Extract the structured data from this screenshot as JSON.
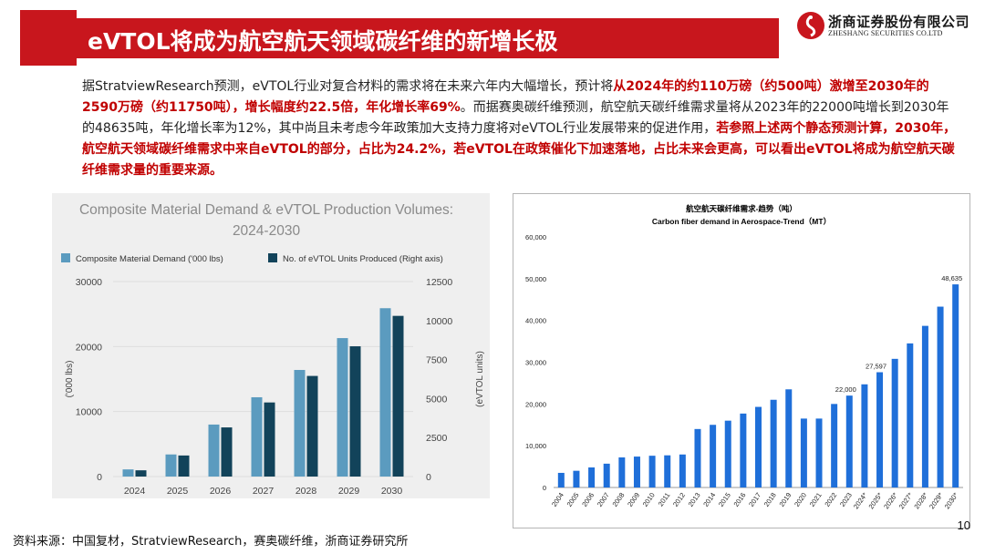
{
  "header": {
    "title": "eVTOL将成为航空航天领域碳纤维的新增长极",
    "logo_cn": "浙商证券股份有限公司",
    "logo_en": "ZHESHANG SECURITIES CO.LTD",
    "accent_color": "#c8161d"
  },
  "body": {
    "seg1": "据StratviewResearch预测，eVTOL行业对复合材料的需求将在未来六年内大幅增长，预计将",
    "seg2": "从2024年的约110万磅（约500吨）激增至2030年的2590万磅（约11750吨），增长幅度约22.5倍，年化增长率69%",
    "seg3": "。而据赛奥碳纤维预测，航空航天碳纤维需求量将从2023年的22000吨增长到2030年的48635吨，年化增长率为12%，其中尚且未考虑今年政策加大支持力度将对eVTOL行业发展带来的促进作用，",
    "seg4": "若参照上述两个静态预测计算，2030年，航空航天领域碳纤维需求中来自eVTOL的部分，占比为24.2%，若eVTOL在政策催化下加速落地，占比未来会更高，可以看出eVTOL将成为航空航天碳纤维需求量的重要来源。"
  },
  "footer": {
    "source": "资料来源：中国复材，StratviewResearch，赛奥碳纤维，浙商证券研究所",
    "page": "10"
  },
  "chart_data": [
    {
      "type": "bar",
      "title_line1": "Composite Material Demand & eVTOL Production Volumes:",
      "title_line2": "2024-2030",
      "categories": [
        "2024",
        "2025",
        "2026",
        "2027",
        "2028",
        "2029",
        "2030"
      ],
      "series": [
        {
          "name": "Composite Material Demand ('000 lbs)",
          "axis": "left",
          "color": "#5b9bbf",
          "values": [
            1100,
            3400,
            8000,
            12200,
            16400,
            21300,
            25900
          ]
        },
        {
          "name": "No. of eVTOL Units Produced (Right axis)",
          "axis": "right",
          "color": "#12435a",
          "values": [
            400,
            1350,
            3150,
            4750,
            6450,
            8350,
            10300
          ]
        }
      ],
      "ylabel": "('000 lbs)",
      "y2label": "(eVTOL units)",
      "ylim": [
        0,
        30000
      ],
      "yticks": [
        "0",
        "10000",
        "20000",
        "30000"
      ],
      "y2lim": [
        0,
        12500
      ],
      "y2ticks": [
        "0",
        "2500",
        "5000",
        "7500",
        "10000",
        "12500"
      ]
    },
    {
      "type": "bar",
      "title": "航空航天碳纤维需求-趋势（吨）",
      "subtitle": "Carbon fiber demand in Aerospace-Trend（MT）",
      "categories": [
        "2004",
        "2005",
        "2006",
        "2007",
        "2008",
        "2009",
        "2010",
        "2011",
        "2012",
        "2013",
        "2014",
        "2015",
        "2016",
        "2017",
        "2018",
        "2019",
        "2020",
        "2021",
        "2022",
        "2023",
        "2024*",
        "2025*",
        "2026*",
        "2027*",
        "2028*",
        "2029*",
        "2030*"
      ],
      "values": [
        3500,
        4000,
        4800,
        5700,
        7200,
        7400,
        7600,
        7700,
        7900,
        14000,
        15000,
        16000,
        17700,
        19300,
        21000,
        23500,
        16500,
        16500,
        20000,
        22000,
        24700,
        27597,
        30800,
        34500,
        38700,
        43300,
        48635
      ],
      "color": "#1f6fd9",
      "data_labels": {
        "2023": "22,000",
        "2025*": "27,597",
        "2030*": "48,635"
      },
      "ylim": [
        0,
        60000
      ],
      "yticks": [
        "0",
        "10,000",
        "20,000",
        "30,000",
        "40,000",
        "50,000",
        "60,000"
      ]
    }
  ]
}
